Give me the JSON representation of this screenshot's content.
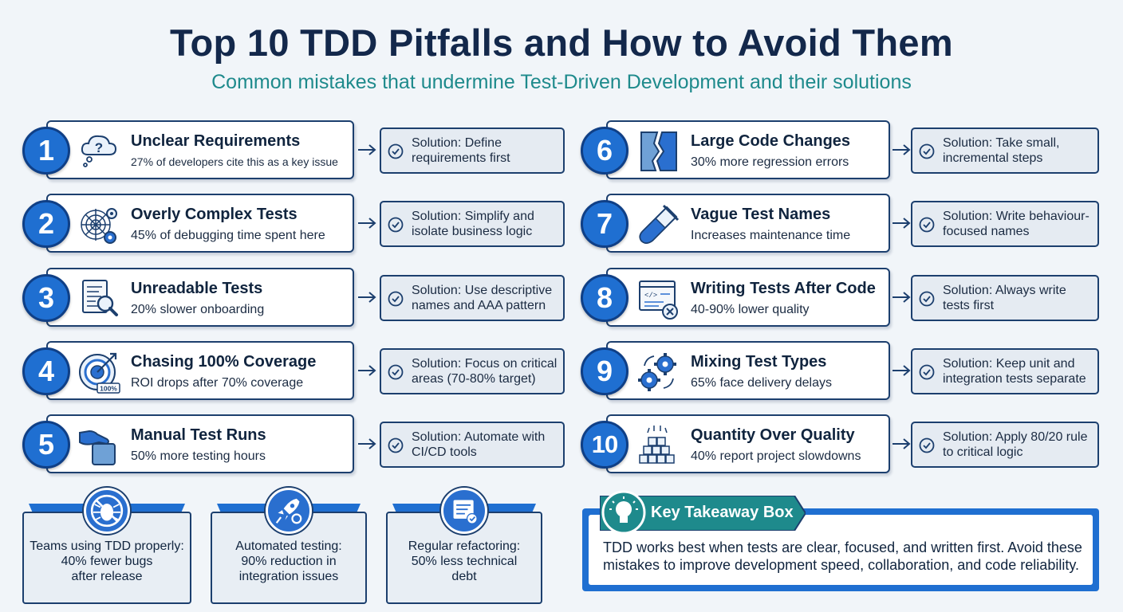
{
  "header": {
    "title": "Top 10 TDD Pitfalls and How to Avoid Them",
    "subtitle": "Common mistakes that undermine Test-Driven Development and their solutions"
  },
  "pitfalls": [
    {
      "number": "1",
      "title": "Unclear Requirements",
      "stat": "27% of developers cite this as a key issue",
      "solution": "Solution: Define requirements first",
      "icon": "thinking-cloud-question-icon"
    },
    {
      "number": "2",
      "title": "Overly Complex Tests",
      "stat": "45% of debugging time spent here",
      "solution": "Solution: Simplify and isolate business logic",
      "icon": "tangled-web-gears-icon"
    },
    {
      "number": "3",
      "title": "Unreadable Tests",
      "stat": "20% slower onboarding",
      "solution": "Solution: Use descriptive names and AAA pattern",
      "icon": "document-magnifier-icon"
    },
    {
      "number": "4",
      "title": "Chasing 100% Coverage",
      "stat": "ROI drops after 70% coverage",
      "solution": "Solution: Focus on critical areas (70-80% target)",
      "icon": "target-arrow-icon",
      "icon_label": "100%"
    },
    {
      "number": "5",
      "title": "Manual Test Runs",
      "stat": "50% more testing hours",
      "solution": "Solution: Automate with CI/CD tools",
      "icon": "hand-box-icon"
    },
    {
      "number": "6",
      "title": "Large Code Changes",
      "stat": "30% more regression errors",
      "solution": "Solution: Take small, incremental steps",
      "icon": "broken-block-icon"
    },
    {
      "number": "7",
      "title": "Vague Test Names",
      "stat": "Increases maintenance time",
      "solution": "Solution: Write behaviour-focused names",
      "icon": "test-tube-icon"
    },
    {
      "number": "8",
      "title": "Writing Tests After Code",
      "stat": "40-90% lower quality",
      "solution": "Solution: Always write tests first",
      "icon": "code-window-x-icon"
    },
    {
      "number": "9",
      "title": "Mixing Test Types",
      "stat": "65% face delivery delays",
      "solution": "Solution: Keep unit and integration tests separate",
      "icon": "gears-cycle-icon"
    },
    {
      "number": "10",
      "title": "Quantity Over Quality",
      "stat": "40% report project slowdowns",
      "solution": "Solution: Apply 80/20 rule to critical logic",
      "icon": "stacked-blocks-icon"
    }
  ],
  "stats": [
    {
      "text": "Teams using TDD properly:\n40% fewer bugs\nafter release",
      "icon": "no-bug-icon"
    },
    {
      "text": "Automated testing:\n90% reduction in\nintegration issues",
      "icon": "rocket-gear-icon"
    },
    {
      "text": "Regular refactoring:\n50% less technical\ndebt",
      "icon": "checklist-window-icon"
    }
  ],
  "takeaway": {
    "label": "Key Takeaway Box",
    "text": "TDD works best when tests are clear, focused, and written first. Avoid these mistakes to improve development speed, collaboration, and code reliability."
  },
  "colors": {
    "primary_blue": "#1f6fd1",
    "navy": "#13284b",
    "teal": "#1e8a8c",
    "card_border": "#1c3f6e",
    "solution_bg": "#e5ebf2"
  }
}
